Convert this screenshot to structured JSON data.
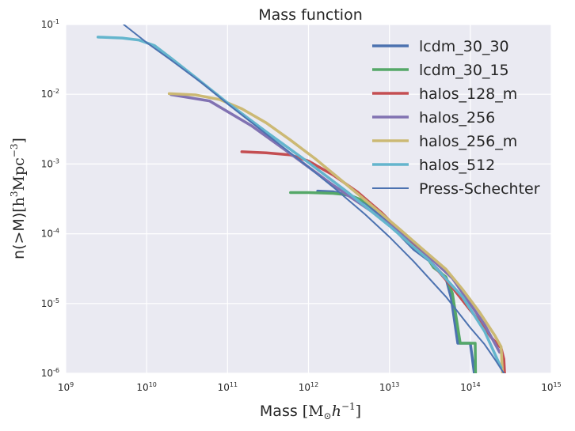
{
  "chart_data": {
    "type": "line",
    "title": "Mass function",
    "xlabel": "Mass [M☉h⁻¹]",
    "xlabel_parts": {
      "text": "Mass ",
      "math": "[M",
      "sub": "⊙",
      "h": "h",
      "sup": "−1",
      "close": "]"
    },
    "ylabel": "n(>M)[h³Mpc⁻³]",
    "ylabel_parts": {
      "text": "n(>M)",
      "math": "[h",
      "sup1": "3",
      "mpc": "Mpc",
      "sup2": "−3",
      "close": "]"
    },
    "x_scale": "log",
    "y_scale": "log",
    "xlim": [
      1000000000.0,
      1000000000000000.0
    ],
    "ylim": [
      1e-06,
      0.1
    ],
    "grid": true,
    "legend_position": "top-right",
    "x_ticks": [
      {
        "value": 1000000000.0,
        "base": "10",
        "exp": "9"
      },
      {
        "value": 10000000000.0,
        "base": "10",
        "exp": "10"
      },
      {
        "value": 100000000000.0,
        "base": "10",
        "exp": "11"
      },
      {
        "value": 1000000000000.0,
        "base": "10",
        "exp": "12"
      },
      {
        "value": 10000000000000.0,
        "base": "10",
        "exp": "13"
      },
      {
        "value": 100000000000000.0,
        "base": "10",
        "exp": "14"
      },
      {
        "value": 1000000000000000.0,
        "base": "10",
        "exp": "15"
      }
    ],
    "y_ticks": [
      {
        "value": 1e-06,
        "base": "10",
        "exp": "-6"
      },
      {
        "value": 1e-05,
        "base": "10",
        "exp": "-5"
      },
      {
        "value": 0.0001,
        "base": "10",
        "exp": "-4"
      },
      {
        "value": 0.001,
        "base": "10",
        "exp": "-3"
      },
      {
        "value": 0.01,
        "base": "10",
        "exp": "-2"
      },
      {
        "value": 0.1,
        "base": "10",
        "exp": "-1"
      }
    ],
    "series": [
      {
        "name": "lcdm_30_30",
        "color": "#4c72b0",
        "width": 3.5,
        "x": [
          1300000000000.0,
          2000000000000.0,
          3200000000000.0,
          5000000000000.0,
          8000000000000.0,
          12000000000000.0,
          20000000000000.0,
          32000000000000.0,
          50000000000000.0,
          58000000000000.0,
          70000000000000.0,
          78000000000000.0,
          100000000000000.0,
          112000000000000.0
        ],
        "y": [
          0.00041,
          0.0004,
          0.00035,
          0.00028,
          0.00018,
          0.00011,
          6e-05,
          4e-05,
          2.3e-05,
          1.2e-05,
          2.7e-06,
          2.7e-06,
          2.7e-06,
          1e-06
        ]
      },
      {
        "name": "lcdm_30_15",
        "color": "#55a868",
        "width": 3.5,
        "x": [
          600000000000.0,
          1000000000000.0,
          2000000000000.0,
          3200000000000.0,
          5000000000000.0,
          8000000000000.0,
          12000000000000.0,
          16000000000000.0,
          25000000000000.0,
          35000000000000.0,
          50000000000000.0,
          60000000000000.0,
          75000000000000.0,
          100000000000000.0,
          115000000000000.0,
          116000000000000.0
        ],
        "y": [
          0.00039,
          0.00039,
          0.00038,
          0.00036,
          0.00029,
          0.0002,
          0.000125,
          8e-05,
          6e-05,
          3.3e-05,
          2.4e-05,
          1.4e-05,
          2.7e-06,
          2.7e-06,
          2.7e-06,
          1e-06
        ]
      },
      {
        "name": "halos_128_m",
        "color": "#c44e52",
        "width": 3.5,
        "x": [
          150000000000.0,
          300000000000.0,
          600000000000.0,
          1000000000000.0,
          2000000000000.0,
          4000000000000.0,
          8000000000000.0,
          16000000000000.0,
          32000000000000.0,
          60000000000000.0,
          100000000000000.0,
          140000000000000.0,
          180000000000000.0,
          240000000000000.0,
          260000000000000.0,
          265000000000000.0
        ],
        "y": [
          0.0015,
          0.00145,
          0.00135,
          0.0011,
          0.0007,
          0.0004,
          0.0002,
          9e-05,
          4e-05,
          1.7e-05,
          8e-06,
          5e-06,
          3.3e-06,
          2.3e-06,
          1.6e-06,
          1e-06
        ]
      },
      {
        "name": "halos_256",
        "color": "#8172b2",
        "width": 3.5,
        "x": [
          20000000000.0,
          60000000000.0,
          200000000000.0,
          600000000000.0,
          2000000000000.0,
          6000000000000.0,
          20000000000000.0,
          60000000000000.0,
          150000000000000.0,
          230000000000000.0
        ],
        "y": [
          0.0099,
          0.008,
          0.0035,
          0.0014,
          0.0005,
          0.00021,
          7.5e-05,
          2.3e-05,
          5e-06,
          2e-06
        ]
      },
      {
        "name": "halos_256_m",
        "color": "#ccb974",
        "width": 3.5,
        "x": [
          19000000000.0,
          40000000000.0,
          80000000000.0,
          150000000000.0,
          300000000000.0,
          600000000000.0,
          1200000000000.0,
          3000000000000.0,
          6000000000000.0,
          12000000000000.0,
          25000000000000.0,
          50000000000000.0,
          80000000000000.0,
          130000000000000.0,
          200000000000000.0,
          240000000000000.0,
          250000000000000.0
        ],
        "y": [
          0.0102,
          0.0098,
          0.0084,
          0.0062,
          0.0039,
          0.0022,
          0.0012,
          0.0005,
          0.000255,
          0.00013,
          6.2e-05,
          3.1e-05,
          1.6e-05,
          7.5e-06,
          3.5e-06,
          2.4e-06,
          1e-06
        ]
      },
      {
        "name": "halos_512",
        "color": "#64b5cd",
        "width": 3.5,
        "x": [
          2500000000.0,
          5000000000.0,
          8000000000.0,
          12500000000.0,
          20000000000.0,
          40000000000.0,
          100000000000.0,
          300000000000.0,
          1000000000000.0,
          3000000000000.0,
          10000000000000.0,
          30000000000000.0,
          80000000000000.0,
          150000000000000.0,
          240000000000000.0
        ],
        "y": [
          0.066,
          0.064,
          0.06,
          0.05,
          0.033,
          0.0175,
          0.0075,
          0.0029,
          0.00105,
          0.0004,
          0.00013,
          4.3e-05,
          1.25e-05,
          4e-06,
          1.2e-06
        ]
      },
      {
        "name": "Press-Schechter",
        "color": "#4c72b0",
        "width": 2,
        "x": [
          5200000000.0,
          10000000000.0,
          20000000000.0,
          50000000000.0,
          100000000000.0,
          200000000000.0,
          500000000000.0,
          1000000000000.0,
          2000000000000.0,
          5000000000000.0,
          10000000000000.0,
          20000000000000.0,
          50000000000000.0,
          100000000000000.0,
          150000000000000.0,
          200000000000000.0,
          260000000000000.0
        ],
        "y": [
          0.1,
          0.055,
          0.031,
          0.014,
          0.0073,
          0.0039,
          0.0017,
          0.0009,
          0.00047,
          0.00019,
          9e-05,
          4e-05,
          1.25e-05,
          4.5e-06,
          2.6e-06,
          1.6e-06,
          1e-06
        ]
      }
    ]
  }
}
